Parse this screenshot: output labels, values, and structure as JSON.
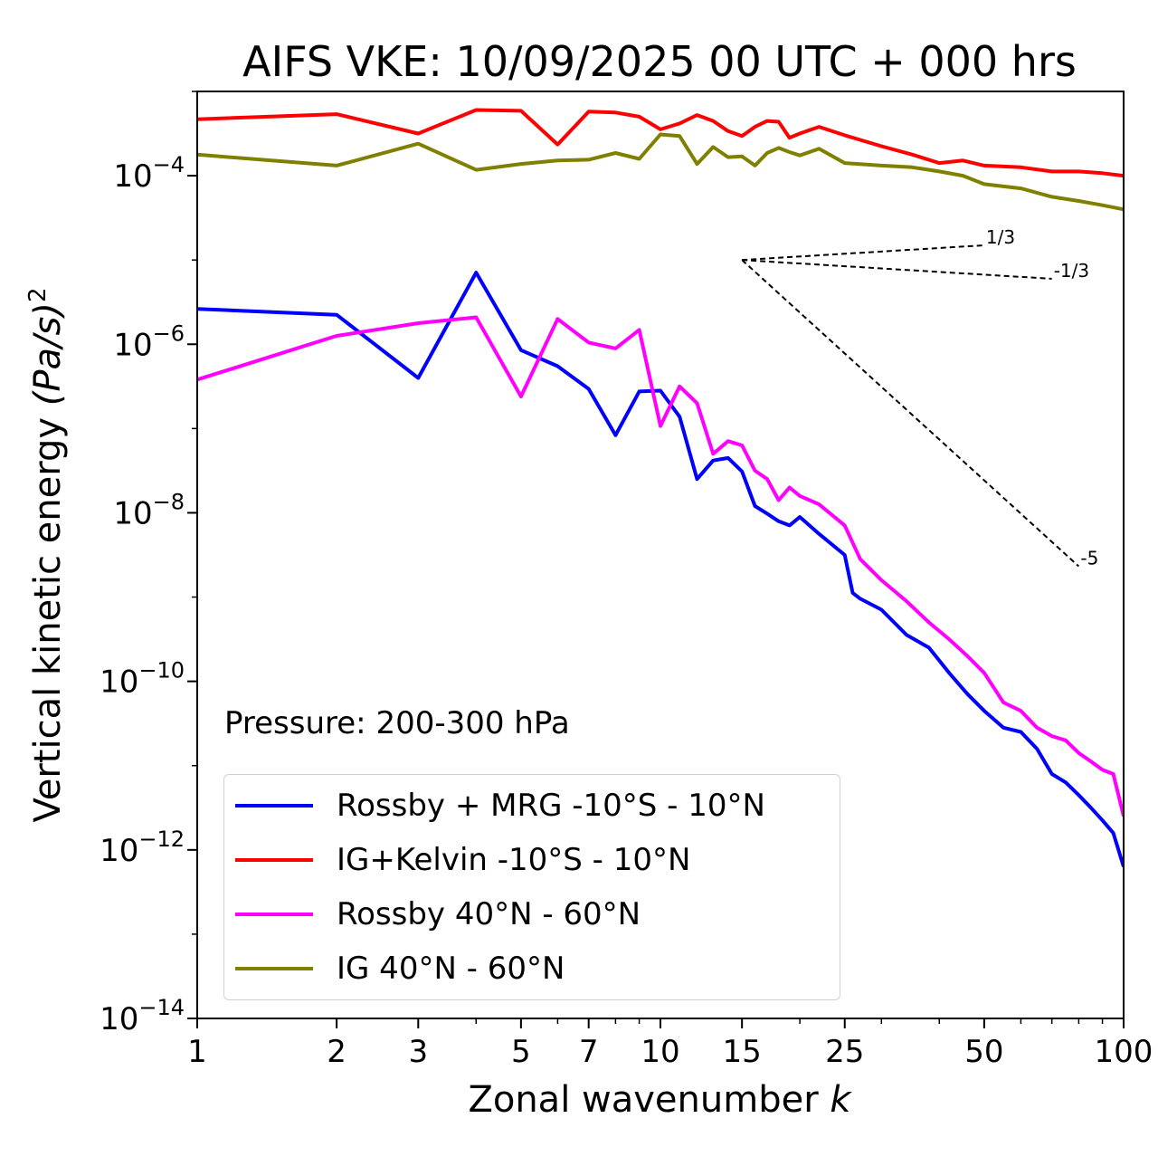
{
  "chart_data": {
    "type": "line",
    "title": "AIFS VKE: 10/09/2025 00 UTC + 000 hrs",
    "xlabel": "Zonal wavenumber",
    "xlabel_var": "k",
    "ylabel": "Vertical kinetic energy",
    "ylabel_units": "(Pa/s)",
    "ylabel_exp": "2",
    "xscale": "log",
    "yscale": "log",
    "xlim": [
      1,
      100
    ],
    "ylim_exp": [
      -14,
      -3
    ],
    "x_ticks": [
      {
        "value": 1,
        "label": "1"
      },
      {
        "value": 2,
        "label": "2"
      },
      {
        "value": 3,
        "label": "3"
      },
      {
        "value": 5,
        "label": "5"
      },
      {
        "value": 7,
        "label": "7"
      },
      {
        "value": 10,
        "label": "10"
      },
      {
        "value": 15,
        "label": "15"
      },
      {
        "value": 25,
        "label": "25"
      },
      {
        "value": 50,
        "label": "50"
      },
      {
        "value": 100,
        "label": "100"
      }
    ],
    "y_ticks": [
      {
        "exp": -4,
        "base": "10",
        "sup": "−4"
      },
      {
        "exp": -6,
        "base": "10",
        "sup": "−6"
      },
      {
        "exp": -8,
        "base": "10",
        "sup": "−8"
      },
      {
        "exp": -10,
        "base": "10",
        "sup": "−10"
      },
      {
        "exp": -12,
        "base": "10",
        "sup": "−12"
      },
      {
        "exp": -14,
        "base": "10",
        "sup": "−14"
      }
    ],
    "annotation": "Pressure: 200-300 hPa",
    "legend_position": "lower-left",
    "series": [
      {
        "name": "Rossby + MRG -10°S - 10°N",
        "color": "#0000ff",
        "points": [
          [
            1,
            -5.58
          ],
          [
            2,
            -5.65
          ],
          [
            3,
            -6.4
          ],
          [
            4,
            -5.15
          ],
          [
            5,
            -6.07
          ],
          [
            6,
            -6.26
          ],
          [
            7,
            -6.53
          ],
          [
            8,
            -7.08
          ],
          [
            9,
            -6.56
          ],
          [
            10,
            -6.55
          ],
          [
            11,
            -6.86
          ],
          [
            12,
            -7.6
          ],
          [
            13,
            -7.38
          ],
          [
            14,
            -7.35
          ],
          [
            15,
            -7.51
          ],
          [
            16,
            -7.92
          ],
          [
            17,
            -8.01
          ],
          [
            18,
            -8.1
          ],
          [
            19,
            -8.15
          ],
          [
            20,
            -8.05
          ],
          [
            22,
            -8.25
          ],
          [
            25,
            -8.5
          ],
          [
            26,
            -8.95
          ],
          [
            27,
            -9.02
          ],
          [
            30,
            -9.15
          ],
          [
            34,
            -9.45
          ],
          [
            38,
            -9.6
          ],
          [
            42,
            -9.9
          ],
          [
            46,
            -10.15
          ],
          [
            50,
            -10.35
          ],
          [
            55,
            -10.55
          ],
          [
            60,
            -10.6
          ],
          [
            65,
            -10.8
          ],
          [
            70,
            -11.1
          ],
          [
            75,
            -11.2
          ],
          [
            80,
            -11.35
          ],
          [
            85,
            -11.5
          ],
          [
            90,
            -11.65
          ],
          [
            95,
            -11.8
          ],
          [
            100,
            -12.2
          ]
        ]
      },
      {
        "name": "IG+Kelvin -10°S - 10°N",
        "color": "#ff0000",
        "points": [
          [
            1,
            -3.33
          ],
          [
            2,
            -3.27
          ],
          [
            3,
            -3.5
          ],
          [
            4,
            -3.22
          ],
          [
            5,
            -3.23
          ],
          [
            6,
            -3.63
          ],
          [
            7,
            -3.24
          ],
          [
            8,
            -3.25
          ],
          [
            9,
            -3.3
          ],
          [
            10,
            -3.45
          ],
          [
            11,
            -3.38
          ],
          [
            12,
            -3.28
          ],
          [
            13,
            -3.35
          ],
          [
            14,
            -3.47
          ],
          [
            15,
            -3.53
          ],
          [
            16,
            -3.42
          ],
          [
            17,
            -3.35
          ],
          [
            18,
            -3.36
          ],
          [
            19,
            -3.55
          ],
          [
            20,
            -3.5
          ],
          [
            22,
            -3.42
          ],
          [
            25,
            -3.52
          ],
          [
            30,
            -3.65
          ],
          [
            35,
            -3.75
          ],
          [
            40,
            -3.85
          ],
          [
            45,
            -3.82
          ],
          [
            50,
            -3.88
          ],
          [
            60,
            -3.9
          ],
          [
            70,
            -3.95
          ],
          [
            80,
            -3.95
          ],
          [
            90,
            -3.97
          ],
          [
            100,
            -4.0
          ]
        ]
      },
      {
        "name": "Rossby 40°N - 60°N",
        "color": "#ff00ff",
        "points": [
          [
            1,
            -6.42
          ],
          [
            2,
            -5.9
          ],
          [
            3,
            -5.75
          ],
          [
            4,
            -5.68
          ],
          [
            5,
            -6.62
          ],
          [
            6,
            -5.7
          ],
          [
            7,
            -5.98
          ],
          [
            8,
            -6.05
          ],
          [
            9,
            -5.83
          ],
          [
            10,
            -6.97
          ],
          [
            11,
            -6.5
          ],
          [
            12,
            -6.7
          ],
          [
            13,
            -7.3
          ],
          [
            14,
            -7.15
          ],
          [
            15,
            -7.2
          ],
          [
            16,
            -7.5
          ],
          [
            17,
            -7.6
          ],
          [
            18,
            -7.85
          ],
          [
            19,
            -7.7
          ],
          [
            20,
            -7.8
          ],
          [
            22,
            -7.9
          ],
          [
            25,
            -8.15
          ],
          [
            27,
            -8.55
          ],
          [
            30,
            -8.8
          ],
          [
            34,
            -9.05
          ],
          [
            38,
            -9.3
          ],
          [
            42,
            -9.5
          ],
          [
            46,
            -9.7
          ],
          [
            50,
            -9.9
          ],
          [
            55,
            -10.25
          ],
          [
            60,
            -10.35
          ],
          [
            65,
            -10.55
          ],
          [
            70,
            -10.65
          ],
          [
            75,
            -10.7
          ],
          [
            80,
            -10.85
          ],
          [
            85,
            -10.95
          ],
          [
            90,
            -11.05
          ],
          [
            95,
            -11.1
          ],
          [
            100,
            -11.6
          ]
        ]
      },
      {
        "name": "IG 40°N - 60°N",
        "color": "#808000",
        "points": [
          [
            1,
            -3.75
          ],
          [
            2,
            -3.88
          ],
          [
            3,
            -3.62
          ],
          [
            4,
            -3.93
          ],
          [
            5,
            -3.86
          ],
          [
            6,
            -3.82
          ],
          [
            7,
            -3.81
          ],
          [
            8,
            -3.73
          ],
          [
            9,
            -3.8
          ],
          [
            10,
            -3.51
          ],
          [
            11,
            -3.53
          ],
          [
            12,
            -3.86
          ],
          [
            13,
            -3.66
          ],
          [
            14,
            -3.78
          ],
          [
            15,
            -3.77
          ],
          [
            16,
            -3.88
          ],
          [
            17,
            -3.73
          ],
          [
            18,
            -3.67
          ],
          [
            19,
            -3.72
          ],
          [
            20,
            -3.76
          ],
          [
            22,
            -3.68
          ],
          [
            25,
            -3.85
          ],
          [
            30,
            -3.88
          ],
          [
            35,
            -3.9
          ],
          [
            40,
            -3.95
          ],
          [
            45,
            -4.0
          ],
          [
            50,
            -4.1
          ],
          [
            60,
            -4.15
          ],
          [
            70,
            -4.25
          ],
          [
            80,
            -4.3
          ],
          [
            90,
            -4.35
          ],
          [
            100,
            -4.4
          ]
        ]
      }
    ],
    "reference_lines": [
      {
        "label": "1/3",
        "slope": 0.3333,
        "x_start": 15,
        "x_end": 50,
        "y_start_exp": -5
      },
      {
        "label": "-1/3",
        "slope": -0.3333,
        "x_start": 15,
        "x_end": 70,
        "y_start_exp": -5
      },
      {
        "label": "-5",
        "slope": -5,
        "x_start": 15,
        "x_end": 80,
        "y_start_exp": -5
      }
    ]
  }
}
